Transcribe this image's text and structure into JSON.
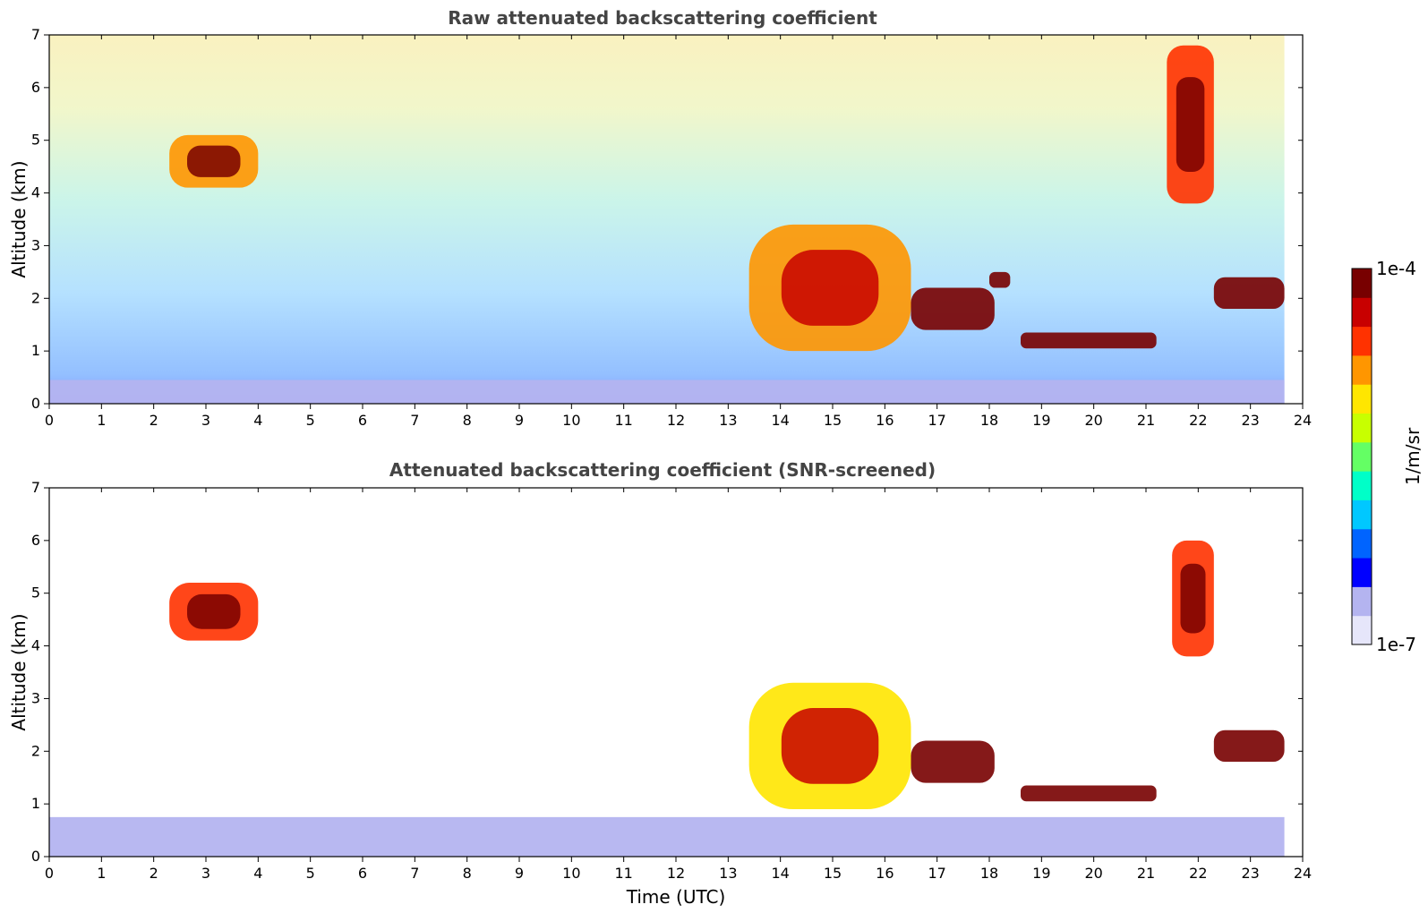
{
  "chart_data": [
    {
      "type": "heatmap",
      "title": "Raw attenuated backscattering coefficient",
      "xlabel": "",
      "ylabel": "Altitude (km)",
      "xlim": [
        0,
        24
      ],
      "ylim": [
        0,
        7
      ],
      "xticks": [
        0,
        1,
        2,
        3,
        4,
        5,
        6,
        7,
        8,
        9,
        10,
        11,
        12,
        13,
        14,
        15,
        16,
        17,
        18,
        19,
        20,
        21,
        22,
        23,
        24
      ],
      "yticks": [
        0,
        1,
        2,
        3,
        4,
        5,
        6,
        7
      ],
      "data_end_time": 23.65,
      "features": [
        {
          "name": "boundary-layer",
          "t0": 0,
          "t1": 23.65,
          "z0": 0,
          "z1": 0.45,
          "level": 0.12
        },
        {
          "name": "mid-level-cirrus",
          "t0": 2.3,
          "t1": 4.0,
          "z0": 4.1,
          "z1": 5.1,
          "level": 0.78
        },
        {
          "name": "convective-cloud",
          "t0": 13.4,
          "t1": 16.5,
          "z0": 1.0,
          "z1": 3.4,
          "level": 0.72
        },
        {
          "name": "stratus-layer-a",
          "t0": 16.5,
          "t1": 18.1,
          "z0": 1.4,
          "z1": 2.2,
          "level": 1.0
        },
        {
          "name": "stratus-layer-b",
          "t0": 18.0,
          "t1": 18.4,
          "z0": 2.2,
          "z1": 2.5,
          "level": 1.0
        },
        {
          "name": "stratus-layer-c",
          "t0": 18.6,
          "t1": 21.2,
          "z0": 1.05,
          "z1": 1.35,
          "level": 0.98
        },
        {
          "name": "fall-streak",
          "t0": 21.4,
          "t1": 22.3,
          "z0": 3.8,
          "z1": 6.8,
          "level": 0.8
        },
        {
          "name": "stratus-layer-d",
          "t0": 22.3,
          "t1": 23.65,
          "z0": 1.8,
          "z1": 2.4,
          "level": 1.0
        }
      ]
    },
    {
      "type": "heatmap",
      "title": "Attenuated backscattering coefficient (SNR-screened)",
      "xlabel": "Time (UTC)",
      "ylabel": "Altitude (km)",
      "xlim": [
        0,
        24
      ],
      "ylim": [
        0,
        7
      ],
      "xticks": [
        0,
        1,
        2,
        3,
        4,
        5,
        6,
        7,
        8,
        9,
        10,
        11,
        12,
        13,
        14,
        15,
        16,
        17,
        18,
        19,
        20,
        21,
        22,
        23,
        24
      ],
      "yticks": [
        0,
        1,
        2,
        3,
        4,
        5,
        6,
        7
      ],
      "data_end_time": 23.65,
      "features": [
        {
          "name": "boundary-layer",
          "t0": 0,
          "t1": 23.65,
          "z0": 0,
          "z1": 0.75,
          "level": 0.1
        },
        {
          "name": "mid-level-cirrus",
          "t0": 2.3,
          "t1": 4.0,
          "z0": 4.1,
          "z1": 5.2,
          "level": 0.8
        },
        {
          "name": "convective-cloud",
          "t0": 13.4,
          "t1": 16.5,
          "z0": 0.9,
          "z1": 3.3,
          "level": 0.7
        },
        {
          "name": "stratus-layer-a",
          "t0": 16.5,
          "t1": 18.1,
          "z0": 1.4,
          "z1": 2.2,
          "level": 1.0
        },
        {
          "name": "stratus-layer-c",
          "t0": 18.6,
          "t1": 21.2,
          "z0": 1.05,
          "z1": 1.35,
          "level": 0.98
        },
        {
          "name": "fall-streak",
          "t0": 21.5,
          "t1": 22.3,
          "z0": 3.8,
          "z1": 6.0,
          "level": 0.8
        },
        {
          "name": "stratus-layer-d",
          "t0": 22.3,
          "t1": 23.65,
          "z0": 1.8,
          "z1": 2.4,
          "level": 1.0
        }
      ]
    }
  ],
  "colorbar": {
    "max_label": "1e-4",
    "min_label": "1e-7",
    "unit_label": "1/m/sr",
    "colors": [
      "#e6e6fa",
      "#b4b4f0",
      "#0000ff",
      "#0064ff",
      "#00c8ff",
      "#00ffc8",
      "#64ff64",
      "#c8ff00",
      "#ffe600",
      "#ff9600",
      "#ff3200",
      "#c80000",
      "#780000"
    ]
  }
}
